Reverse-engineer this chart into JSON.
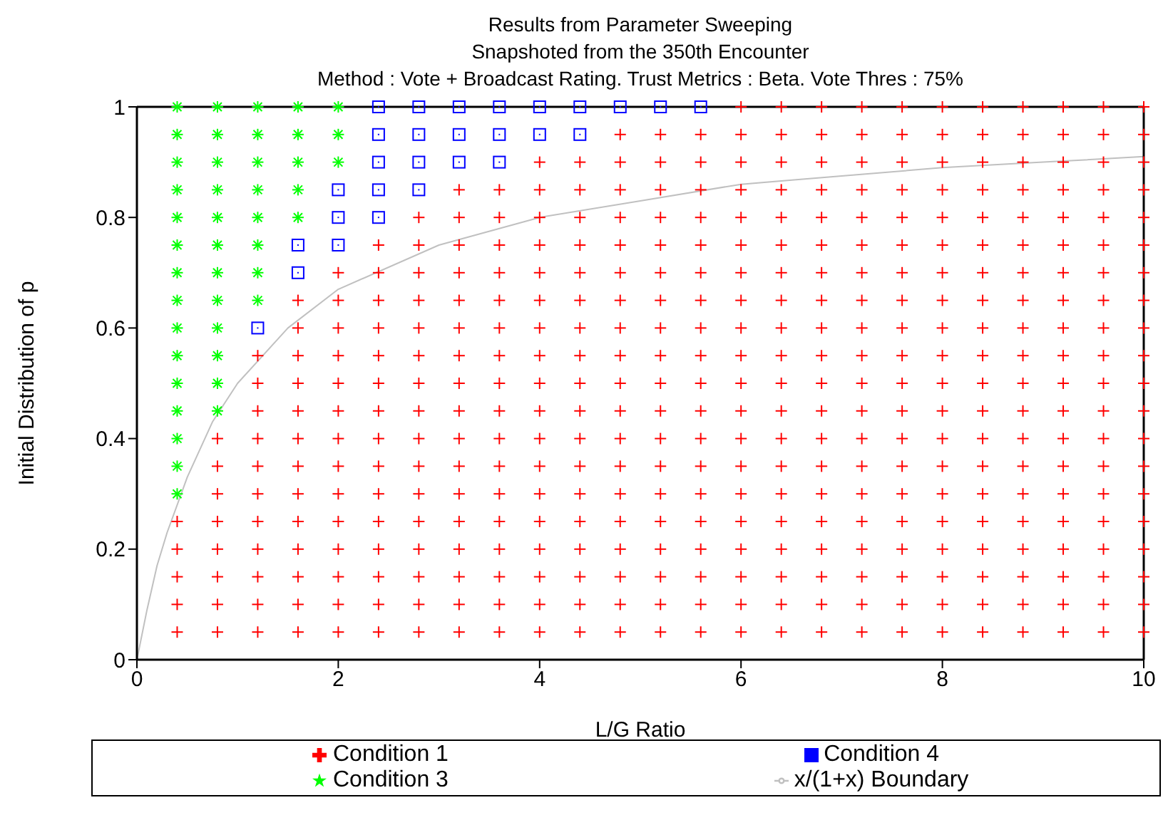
{
  "chart_data": {
    "type": "scatter",
    "title": "Results from Parameter Sweeping",
    "subtitle": "Snapshoted from the 350th Encounter\nMethod : Vote + Broadcast Rating. Trust Metrics : Beta. Vote Thres : 75%",
    "xlabel": "L/G Ratio",
    "ylabel": "Initial Distribution of p",
    "xlim": [
      0,
      10
    ],
    "xticks": [
      0,
      2,
      4,
      6,
      8,
      10
    ],
    "ylim": [
      0,
      1
    ],
    "yticks": [
      0,
      0.2,
      0.4,
      0.6,
      0.8,
      1
    ],
    "legend": "bottom",
    "series": [
      {
        "name": "Condition 1",
        "color": "#ff0000",
        "marker": "cross",
        "x": [
          0.4,
          0.4,
          0.4,
          0.4,
          0.4,
          0.8,
          0.8,
          0.8,
          0.8,
          0.8,
          0.8,
          0.8,
          0.8,
          1.2,
          1.2,
          1.2,
          1.2,
          1.2,
          1.2,
          1.2,
          1.2,
          1.2,
          1.2,
          1.2,
          1.6,
          1.6,
          1.6,
          1.6,
          1.6,
          1.6,
          1.6,
          1.6,
          1.6,
          1.6,
          1.6,
          1.6,
          1.6,
          2,
          2,
          2,
          2,
          2,
          2,
          2,
          2,
          2,
          2,
          2,
          2,
          2,
          2,
          2.4,
          2.4,
          2.4,
          2.4,
          2.4,
          2.4,
          2.4,
          2.4,
          2.4,
          2.4,
          2.4,
          2.4,
          2.4,
          2.4,
          2.4,
          2.8,
          2.8,
          2.8,
          2.8,
          2.8,
          2.8,
          2.8,
          2.8,
          2.8,
          2.8,
          2.8,
          2.8,
          2.8,
          2.8,
          2.8,
          2.8,
          3.2,
          3.2,
          3.2,
          3.2,
          3.2,
          3.2,
          3.2,
          3.2,
          3.2,
          3.2,
          3.2,
          3.2,
          3.2,
          3.2,
          3.2,
          3.2,
          3.2,
          3.6,
          3.6,
          3.6,
          3.6,
          3.6,
          3.6,
          3.6,
          3.6,
          3.6,
          3.6,
          3.6,
          3.6,
          3.6,
          3.6,
          3.6,
          3.6,
          3.6,
          4,
          4,
          4,
          4,
          4,
          4,
          4,
          4,
          4,
          4,
          4,
          4,
          4,
          4,
          4,
          4,
          4,
          4,
          4.4,
          4.4,
          4.4,
          4.4,
          4.4,
          4.4,
          4.4,
          4.4,
          4.4,
          4.4,
          4.4,
          4.4,
          4.4,
          4.4,
          4.4,
          4.4,
          4.4,
          4.4,
          4.8,
          4.8,
          4.8,
          4.8,
          4.8,
          4.8,
          4.8,
          4.8,
          4.8,
          4.8,
          4.8,
          4.8,
          4.8,
          4.8,
          4.8,
          4.8,
          4.8,
          4.8,
          4.8,
          5.2,
          5.2,
          5.2,
          5.2,
          5.2,
          5.2,
          5.2,
          5.2,
          5.2,
          5.2,
          5.2,
          5.2,
          5.2,
          5.2,
          5.2,
          5.2,
          5.2,
          5.2,
          5.2,
          5.6,
          5.6,
          5.6,
          5.6,
          5.6,
          5.6,
          5.6,
          5.6,
          5.6,
          5.6,
          5.6,
          5.6,
          5.6,
          5.6,
          5.6,
          5.6,
          5.6,
          5.6,
          5.6,
          6,
          6,
          6,
          6,
          6,
          6,
          6,
          6,
          6,
          6,
          6,
          6,
          6,
          6,
          6,
          6,
          6,
          6,
          6,
          6,
          6.4,
          6.4,
          6.4,
          6.4,
          6.4,
          6.4,
          6.4,
          6.4,
          6.4,
          6.4,
          6.4,
          6.4,
          6.4,
          6.4,
          6.4,
          6.4,
          6.4,
          6.4,
          6.4,
          6.4,
          6.8,
          6.8,
          6.8,
          6.8,
          6.8,
          6.8,
          6.8,
          6.8,
          6.8,
          6.8,
          6.8,
          6.8,
          6.8,
          6.8,
          6.8,
          6.8,
          6.8,
          6.8,
          6.8,
          6.8,
          7.2,
          7.2,
          7.2,
          7.2,
          7.2,
          7.2,
          7.2,
          7.2,
          7.2,
          7.2,
          7.2,
          7.2,
          7.2,
          7.2,
          7.2,
          7.2,
          7.2,
          7.2,
          7.2,
          7.2,
          7.6,
          7.6,
          7.6,
          7.6,
          7.6,
          7.6,
          7.6,
          7.6,
          7.6,
          7.6,
          7.6,
          7.6,
          7.6,
          7.6,
          7.6,
          7.6,
          7.6,
          7.6,
          7.6,
          7.6,
          8,
          8,
          8,
          8,
          8,
          8,
          8,
          8,
          8,
          8,
          8,
          8,
          8,
          8,
          8,
          8,
          8,
          8,
          8,
          8,
          8.4,
          8.4,
          8.4,
          8.4,
          8.4,
          8.4,
          8.4,
          8.4,
          8.4,
          8.4,
          8.4,
          8.4,
          8.4,
          8.4,
          8.4,
          8.4,
          8.4,
          8.4,
          8.4,
          8.4,
          8.8,
          8.8,
          8.8,
          8.8,
          8.8,
          8.8,
          8.8,
          8.8,
          8.8,
          8.8,
          8.8,
          8.8,
          8.8,
          8.8,
          8.8,
          8.8,
          8.8,
          8.8,
          8.8,
          8.8,
          9.2,
          9.2,
          9.2,
          9.2,
          9.2,
          9.2,
          9.2,
          9.2,
          9.2,
          9.2,
          9.2,
          9.2,
          9.2,
          9.2,
          9.2,
          9.2,
          9.2,
          9.2,
          9.2,
          9.2,
          9.6,
          9.6,
          9.6,
          9.6,
          9.6,
          9.6,
          9.6,
          9.6,
          9.6,
          9.6,
          9.6,
          9.6,
          9.6,
          9.6,
          9.6,
          9.6,
          9.6,
          9.6,
          9.6,
          9.6,
          10,
          10,
          10,
          10,
          10,
          10,
          10,
          10,
          10,
          10,
          10,
          10,
          10,
          10,
          10,
          10,
          10,
          10,
          10,
          10
        ],
        "values": [
          0.05,
          0.1,
          0.15,
          0.2,
          0.25,
          0.05,
          0.1,
          0.15,
          0.2,
          0.25,
          0.3,
          0.35,
          0.4,
          0.05,
          0.1,
          0.15,
          0.2,
          0.25,
          0.3,
          0.35,
          0.4,
          0.45,
          0.5,
          0.55,
          0.05,
          0.1,
          0.15,
          0.2,
          0.25,
          0.3,
          0.35,
          0.4,
          0.45,
          0.5,
          0.55,
          0.6,
          0.65,
          0.05,
          0.1,
          0.15,
          0.2,
          0.25,
          0.3,
          0.35,
          0.4,
          0.45,
          0.5,
          0.55,
          0.6,
          0.65,
          0.7,
          0.05,
          0.1,
          0.15,
          0.2,
          0.25,
          0.3,
          0.35,
          0.4,
          0.45,
          0.5,
          0.55,
          0.6,
          0.65,
          0.7,
          0.75,
          0.05,
          0.1,
          0.15,
          0.2,
          0.25,
          0.3,
          0.35,
          0.4,
          0.45,
          0.5,
          0.55,
          0.6,
          0.65,
          0.7,
          0.75,
          0.8,
          0.05,
          0.1,
          0.15,
          0.2,
          0.25,
          0.3,
          0.35,
          0.4,
          0.45,
          0.5,
          0.55,
          0.6,
          0.65,
          0.7,
          0.75,
          0.8,
          0.85,
          0.05,
          0.1,
          0.15,
          0.2,
          0.25,
          0.3,
          0.35,
          0.4,
          0.45,
          0.5,
          0.55,
          0.6,
          0.65,
          0.7,
          0.75,
          0.8,
          0.85,
          0.05,
          0.1,
          0.15,
          0.2,
          0.25,
          0.3,
          0.35,
          0.4,
          0.45,
          0.5,
          0.55,
          0.6,
          0.65,
          0.7,
          0.75,
          0.8,
          0.85,
          0.9,
          0.05,
          0.1,
          0.15,
          0.2,
          0.25,
          0.3,
          0.35,
          0.4,
          0.45,
          0.5,
          0.55,
          0.6,
          0.65,
          0.7,
          0.75,
          0.8,
          0.85,
          0.9,
          0.05,
          0.1,
          0.15,
          0.2,
          0.25,
          0.3,
          0.35,
          0.4,
          0.45,
          0.5,
          0.55,
          0.6,
          0.65,
          0.7,
          0.75,
          0.8,
          0.85,
          0.9,
          0.95,
          0.05,
          0.1,
          0.15,
          0.2,
          0.25,
          0.3,
          0.35,
          0.4,
          0.45,
          0.5,
          0.55,
          0.6,
          0.65,
          0.7,
          0.75,
          0.8,
          0.85,
          0.9,
          0.95,
          0.05,
          0.1,
          0.15,
          0.2,
          0.25,
          0.3,
          0.35,
          0.4,
          0.45,
          0.5,
          0.55,
          0.6,
          0.65,
          0.7,
          0.75,
          0.8,
          0.85,
          0.9,
          0.95,
          0.05,
          0.1,
          0.15,
          0.2,
          0.25,
          0.3,
          0.35,
          0.4,
          0.45,
          0.5,
          0.55,
          0.6,
          0.65,
          0.7,
          0.75,
          0.8,
          0.85,
          0.9,
          0.95,
          1,
          0.05,
          0.1,
          0.15,
          0.2,
          0.25,
          0.3,
          0.35,
          0.4,
          0.45,
          0.5,
          0.55,
          0.6,
          0.65,
          0.7,
          0.75,
          0.8,
          0.85,
          0.9,
          0.95,
          1,
          0.05,
          0.1,
          0.15,
          0.2,
          0.25,
          0.3,
          0.35,
          0.4,
          0.45,
          0.5,
          0.55,
          0.6,
          0.65,
          0.7,
          0.75,
          0.8,
          0.85,
          0.9,
          0.95,
          1,
          0.05,
          0.1,
          0.15,
          0.2,
          0.25,
          0.3,
          0.35,
          0.4,
          0.45,
          0.5,
          0.55,
          0.6,
          0.65,
          0.7,
          0.75,
          0.8,
          0.85,
          0.9,
          0.95,
          1,
          0.05,
          0.1,
          0.15,
          0.2,
          0.25,
          0.3,
          0.35,
          0.4,
          0.45,
          0.5,
          0.55,
          0.6,
          0.65,
          0.7,
          0.75,
          0.8,
          0.85,
          0.9,
          0.95,
          1,
          0.05,
          0.1,
          0.15,
          0.2,
          0.25,
          0.3,
          0.35,
          0.4,
          0.45,
          0.5,
          0.55,
          0.6,
          0.65,
          0.7,
          0.75,
          0.8,
          0.85,
          0.9,
          0.95,
          1,
          0.05,
          0.1,
          0.15,
          0.2,
          0.25,
          0.3,
          0.35,
          0.4,
          0.45,
          0.5,
          0.55,
          0.6,
          0.65,
          0.7,
          0.75,
          0.8,
          0.85,
          0.9,
          0.95,
          1,
          0.05,
          0.1,
          0.15,
          0.2,
          0.25,
          0.3,
          0.35,
          0.4,
          0.45,
          0.5,
          0.55,
          0.6,
          0.65,
          0.7,
          0.75,
          0.8,
          0.85,
          0.9,
          0.95,
          1,
          0.05,
          0.1,
          0.15,
          0.2,
          0.25,
          0.3,
          0.35,
          0.4,
          0.45,
          0.5,
          0.55,
          0.6,
          0.65,
          0.7,
          0.75,
          0.8,
          0.85,
          0.9,
          0.95,
          1,
          0.05,
          0.1,
          0.15,
          0.2,
          0.25,
          0.3,
          0.35,
          0.4,
          0.45,
          0.5,
          0.55,
          0.6,
          0.65,
          0.7,
          0.75,
          0.8,
          0.85,
          0.9,
          0.95,
          1,
          0.05,
          0.1,
          0.15,
          0.2,
          0.25,
          0.3,
          0.35,
          0.4,
          0.45,
          0.5,
          0.55,
          0.6,
          0.65,
          0.7,
          0.75,
          0.8,
          0.85,
          0.9,
          0.95,
          1
        ]
      },
      {
        "name": "Condition 4",
        "color": "#0000ff",
        "marker": "square",
        "x": [
          1.2,
          1.6,
          1.6,
          2,
          2,
          2,
          2.4,
          2.4,
          2.4,
          2.4,
          2.4,
          2.8,
          2.8,
          2.8,
          2.8,
          3.2,
          3.2,
          3.2,
          3.6,
          3.6,
          3.6,
          4,
          4,
          4.4,
          4.4,
          4.8,
          5.2,
          5.6
        ],
        "values": [
          0.6,
          0.7,
          0.75,
          0.75,
          0.8,
          0.85,
          0.8,
          0.85,
          0.9,
          0.95,
          1,
          0.85,
          0.9,
          0.95,
          1,
          0.9,
          0.95,
          1,
          0.9,
          0.95,
          1,
          0.95,
          1,
          0.95,
          1,
          1,
          1,
          1
        ]
      },
      {
        "name": "Condition 3",
        "color": "#00ff00",
        "x": [
          0.4,
          0.4,
          0.4,
          0.4,
          0.4,
          0.4,
          0.4,
          0.4,
          0.4,
          0.4,
          0.4,
          0.4,
          0.4,
          0.4,
          0.4,
          0.8,
          0.8,
          0.8,
          0.8,
          0.8,
          0.8,
          0.8,
          0.8,
          0.8,
          0.8,
          0.8,
          0.8,
          1.2,
          1.2,
          1.2,
          1.2,
          1.2,
          1.2,
          1.2,
          1.2,
          1.6,
          1.6,
          1.6,
          1.6,
          1.6,
          2,
          2,
          2
        ],
        "values": [
          0.3,
          0.35,
          0.4,
          0.45,
          0.5,
          0.55,
          0.6,
          0.65,
          0.7,
          0.75,
          0.8,
          0.85,
          0.9,
          0.95,
          1,
          0.45,
          0.5,
          0.55,
          0.6,
          0.65,
          0.7,
          0.75,
          0.8,
          0.85,
          0.9,
          0.95,
          1,
          0.65,
          0.7,
          0.75,
          0.8,
          0.85,
          0.9,
          0.95,
          1,
          0.8,
          0.85,
          0.9,
          0.95,
          1,
          0.9,
          0.95,
          1
        ]
      },
      {
        "name": "x/(1+x) Boundary",
        "type": "line",
        "color": "#c0c0c0",
        "marker": "none",
        "line_style": "solid",
        "x": [
          0,
          0.1,
          0.2,
          0.3,
          0.5,
          0.75,
          1,
          1.5,
          2,
          3,
          4,
          5,
          6,
          7,
          8,
          9,
          10
        ],
        "values": [
          0,
          0.09,
          0.17,
          0.23,
          0.33,
          0.43,
          0.5,
          0.6,
          0.67,
          0.75,
          0.8,
          0.83,
          0.86,
          0.875,
          0.89,
          0.9,
          0.91
        ]
      }
    ]
  }
}
